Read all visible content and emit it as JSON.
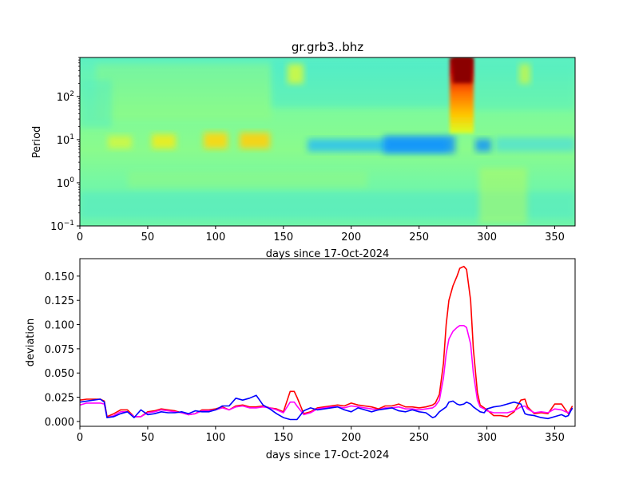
{
  "chart_data": [
    {
      "type": "heatmap",
      "title": "gr.grb3..bhz",
      "xlabel": "days since 17-Oct-2024",
      "ylabel": "Period",
      "xlim": [
        0,
        365
      ],
      "ylim": [
        0.1,
        800
      ],
      "yscale": "log",
      "colormap": "jet",
      "xticks": [
        0,
        50,
        100,
        150,
        200,
        250,
        300,
        350
      ],
      "yticks": [
        {
          "value": 0.1,
          "base": "10",
          "exp": "−1"
        },
        {
          "value": 1,
          "base": "10",
          "exp": "0"
        },
        {
          "value": 10,
          "base": "10",
          "exp": "1"
        },
        {
          "value": 100,
          "base": "10",
          "exp": "2"
        }
      ],
      "grid": false,
      "features": [
        {
          "x": [
            270,
            290
          ],
          "period": [
            15,
            800
          ],
          "level": "very high"
        },
        {
          "x": [
            200,
            300
          ],
          "period": [
            5,
            12
          ],
          "level": "low"
        },
        {
          "x": [
            20,
            140
          ],
          "period": [
            5,
            15
          ],
          "level": "moderately high"
        }
      ]
    },
    {
      "type": "line",
      "xlabel": "days since 17-Oct-2024",
      "ylabel": "deviation",
      "xlim": [
        0,
        365
      ],
      "ylim": [
        -0.005,
        0.168
      ],
      "xticks": [
        0,
        50,
        100,
        150,
        200,
        250,
        300,
        350
      ],
      "yticks": [
        "0.000",
        "0.025",
        "0.050",
        "0.075",
        "0.100",
        "0.125",
        "0.150"
      ],
      "grid": false,
      "x": [
        0,
        5,
        10,
        15,
        18,
        20,
        25,
        30,
        35,
        40,
        45,
        50,
        55,
        60,
        65,
        70,
        75,
        80,
        85,
        90,
        95,
        100,
        105,
        110,
        115,
        120,
        125,
        130,
        135,
        140,
        145,
        150,
        155,
        158,
        160,
        165,
        170,
        175,
        180,
        185,
        190,
        195,
        200,
        205,
        210,
        215,
        220,
        225,
        230,
        235,
        240,
        245,
        250,
        255,
        260,
        262,
        265,
        268,
        270,
        272,
        275,
        278,
        280,
        283,
        285,
        288,
        290,
        293,
        295,
        298,
        300,
        305,
        310,
        315,
        320,
        325,
        328,
        330,
        335,
        340,
        345,
        350,
        355,
        358,
        360,
        363
      ],
      "series": [
        {
          "color": "#ff0000",
          "values": [
            0.022,
            0.023,
            0.023,
            0.023,
            0.021,
            0.005,
            0.008,
            0.012,
            0.012,
            0.005,
            0.005,
            0.01,
            0.011,
            0.013,
            0.012,
            0.011,
            0.009,
            0.007,
            0.008,
            0.012,
            0.012,
            0.013,
            0.015,
            0.012,
            0.016,
            0.017,
            0.015,
            0.015,
            0.016,
            0.014,
            0.013,
            0.01,
            0.031,
            0.031,
            0.025,
            0.008,
            0.01,
            0.014,
            0.015,
            0.016,
            0.017,
            0.016,
            0.019,
            0.017,
            0.016,
            0.015,
            0.013,
            0.016,
            0.016,
            0.018,
            0.015,
            0.015,
            0.014,
            0.015,
            0.017,
            0.019,
            0.028,
            0.06,
            0.1,
            0.125,
            0.14,
            0.15,
            0.158,
            0.16,
            0.157,
            0.125,
            0.075,
            0.03,
            0.017,
            0.014,
            0.012,
            0.006,
            0.006,
            0.005,
            0.01,
            0.022,
            0.023,
            0.015,
            0.008,
            0.009,
            0.008,
            0.018,
            0.018,
            0.012,
            0.008,
            0.016
          ]
        },
        {
          "color": "#ff00ff",
          "values": [
            0.017,
            0.019,
            0.019,
            0.019,
            0.018,
            0.004,
            0.006,
            0.01,
            0.01,
            0.005,
            0.005,
            0.009,
            0.01,
            0.012,
            0.011,
            0.01,
            0.009,
            0.007,
            0.008,
            0.011,
            0.011,
            0.012,
            0.014,
            0.012,
            0.015,
            0.016,
            0.014,
            0.014,
            0.015,
            0.014,
            0.012,
            0.009,
            0.02,
            0.02,
            0.016,
            0.007,
            0.009,
            0.013,
            0.014,
            0.015,
            0.015,
            0.014,
            0.016,
            0.015,
            0.014,
            0.013,
            0.012,
            0.014,
            0.014,
            0.015,
            0.013,
            0.013,
            0.012,
            0.013,
            0.014,
            0.016,
            0.022,
            0.045,
            0.07,
            0.085,
            0.093,
            0.097,
            0.099,
            0.099,
            0.097,
            0.08,
            0.05,
            0.022,
            0.015,
            0.013,
            0.011,
            0.009,
            0.009,
            0.009,
            0.011,
            0.015,
            0.016,
            0.013,
            0.009,
            0.01,
            0.009,
            0.013,
            0.012,
            0.01,
            0.009,
            0.013
          ]
        },
        {
          "color": "#0000ff",
          "values": [
            0.02,
            0.021,
            0.022,
            0.023,
            0.02,
            0.004,
            0.005,
            0.008,
            0.01,
            0.004,
            0.012,
            0.007,
            0.008,
            0.01,
            0.009,
            0.009,
            0.01,
            0.008,
            0.011,
            0.01,
            0.01,
            0.012,
            0.016,
            0.016,
            0.024,
            0.022,
            0.024,
            0.027,
            0.017,
            0.013,
            0.008,
            0.004,
            0.002,
            0.002,
            0.002,
            0.011,
            0.014,
            0.012,
            0.013,
            0.014,
            0.015,
            0.012,
            0.01,
            0.014,
            0.012,
            0.01,
            0.012,
            0.013,
            0.014,
            0.011,
            0.01,
            0.012,
            0.01,
            0.009,
            0.004,
            0.005,
            0.01,
            0.013,
            0.015,
            0.02,
            0.021,
            0.018,
            0.017,
            0.018,
            0.02,
            0.018,
            0.015,
            0.012,
            0.01,
            0.009,
            0.013,
            0.015,
            0.016,
            0.018,
            0.02,
            0.018,
            0.008,
            0.007,
            0.006,
            0.004,
            0.003,
            0.005,
            0.007,
            0.005,
            0.006,
            0.014
          ]
        }
      ]
    }
  ]
}
